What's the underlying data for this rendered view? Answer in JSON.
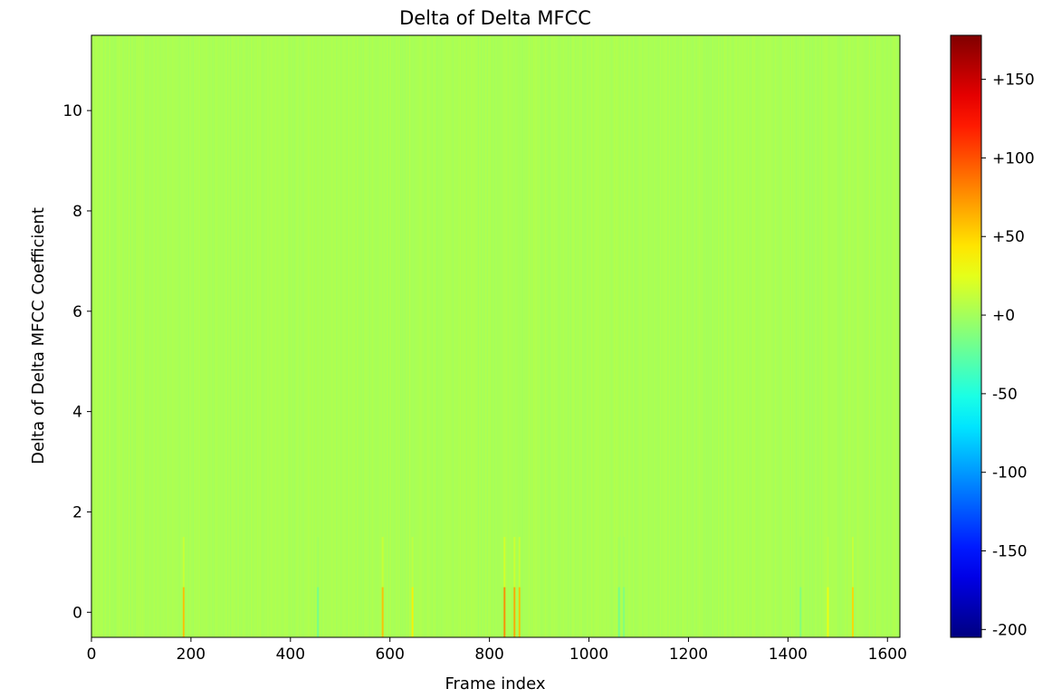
{
  "chart_data": {
    "type": "heatmap",
    "title": "Delta of Delta MFCC",
    "xlabel": "Frame index",
    "ylabel": "Delta of Delta MFCC Coefficient",
    "xlim": [
      0,
      1625
    ],
    "ylim": [
      -0.5,
      11.5
    ],
    "xticks": [
      0,
      200,
      400,
      600,
      800,
      1000,
      1200,
      1400,
      1600
    ],
    "xtick_labels": [
      "0",
      "200",
      "400",
      "600",
      "800",
      "1000",
      "1200",
      "1400",
      "1600"
    ],
    "yticks": [
      0,
      2,
      4,
      6,
      8,
      10
    ],
    "ytick_labels": [
      "0",
      "2",
      "4",
      "6",
      "8",
      "10"
    ],
    "n_frames": 1625,
    "n_coefficients": 12,
    "colormap": "jet",
    "colorbar": {
      "vmin": -205,
      "vmax": 178,
      "ticks": [
        -200,
        -150,
        -100,
        -50,
        0,
        50,
        100,
        150
      ],
      "tick_labels": [
        "-200",
        "-150",
        "-100",
        "-50",
        "+0",
        "+50",
        "+100",
        "+150"
      ]
    },
    "background_value": 3,
    "notable_frames_coefficient_0": [
      {
        "frame": 185,
        "value": 60
      },
      {
        "frame": 455,
        "value": -20
      },
      {
        "frame": 585,
        "value": 60
      },
      {
        "frame": 645,
        "value": 40
      },
      {
        "frame": 830,
        "value": 80
      },
      {
        "frame": 850,
        "value": 70
      },
      {
        "frame": 860,
        "value": 60
      },
      {
        "frame": 1060,
        "value": -20
      },
      {
        "frame": 1070,
        "value": -15
      },
      {
        "frame": 1425,
        "value": -15
      },
      {
        "frame": 1480,
        "value": 30
      },
      {
        "frame": 1530,
        "value": 50
      }
    ]
  }
}
